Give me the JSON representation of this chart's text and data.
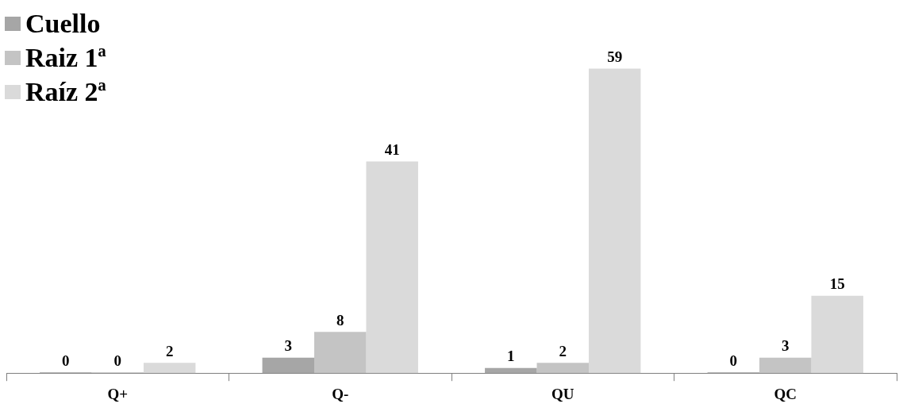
{
  "chart_data": {
    "type": "bar",
    "categories": [
      "Q+",
      "Q-",
      "QU",
      "QC"
    ],
    "series": [
      {
        "name": "Cuello",
        "color": "#a6a6a6",
        "values": [
          0,
          3,
          1,
          0
        ]
      },
      {
        "name": "Raiz 1ª",
        "color": "#c4c4c4",
        "values": [
          0,
          8,
          2,
          3
        ]
      },
      {
        "name": "Raíz 2ª",
        "color": "#dadada",
        "values": [
          2,
          41,
          59,
          15
        ]
      }
    ],
    "data_labels": true,
    "legend": "top left",
    "grid": false,
    "tick_labels": "x"
  }
}
